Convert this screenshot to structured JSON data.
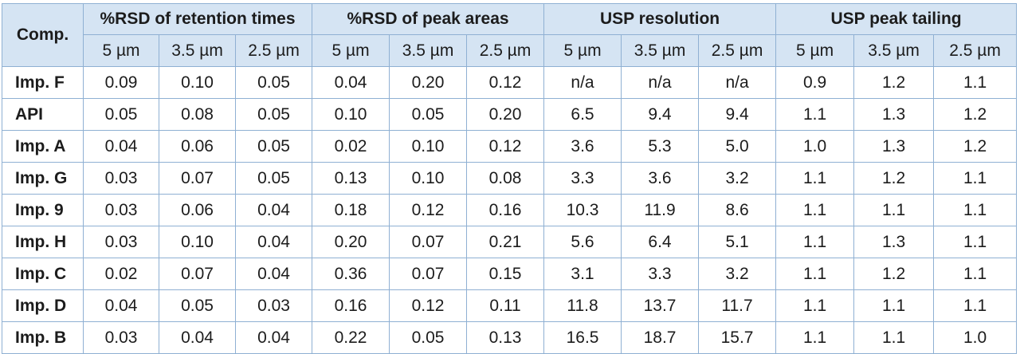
{
  "table": {
    "comp_header": "Comp.",
    "groups": [
      "%RSD of retention times",
      "%RSD of peak areas",
      "USP resolution",
      "USP peak tailing"
    ],
    "sizes": [
      "5 µm",
      "3.5 µm",
      "2.5 µm"
    ],
    "rows": [
      {
        "comp": "Imp. F",
        "values": [
          "0.09",
          "0.10",
          "0.05",
          "0.04",
          "0.20",
          "0.12",
          "n/a",
          "n/a",
          "n/a",
          "0.9",
          "1.2",
          "1.1"
        ]
      },
      {
        "comp": "API",
        "values": [
          "0.05",
          "0.08",
          "0.05",
          "0.10",
          "0.05",
          "0.20",
          "6.5",
          "9.4",
          "9.4",
          "1.1",
          "1.3",
          "1.2"
        ]
      },
      {
        "comp": "Imp. A",
        "values": [
          "0.04",
          "0.06",
          "0.05",
          "0.02",
          "0.10",
          "0.12",
          "3.6",
          "5.3",
          "5.0",
          "1.0",
          "1.3",
          "1.2"
        ]
      },
      {
        "comp": "Imp. G",
        "values": [
          "0.03",
          "0.07",
          "0.05",
          "0.13",
          "0.10",
          "0.08",
          "3.3",
          "3.6",
          "3.2",
          "1.1",
          "1.2",
          "1.1"
        ]
      },
      {
        "comp": "Imp. 9",
        "values": [
          "0.03",
          "0.06",
          "0.04",
          "0.18",
          "0.12",
          "0.16",
          "10.3",
          "11.9",
          "8.6",
          "1.1",
          "1.1",
          "1.1"
        ]
      },
      {
        "comp": "Imp. H",
        "values": [
          "0.03",
          "0.10",
          "0.04",
          "0.20",
          "0.07",
          "0.21",
          "5.6",
          "6.4",
          "5.1",
          "1.1",
          "1.3",
          "1.1"
        ]
      },
      {
        "comp": "Imp. C",
        "values": [
          "0.02",
          "0.07",
          "0.04",
          "0.36",
          "0.07",
          "0.15",
          "3.1",
          "3.3",
          "3.2",
          "1.1",
          "1.2",
          "1.1"
        ]
      },
      {
        "comp": "Imp. D",
        "values": [
          "0.04",
          "0.05",
          "0.03",
          "0.16",
          "0.12",
          "0.11",
          "11.8",
          "13.7",
          "11.7",
          "1.1",
          "1.1",
          "1.1"
        ]
      },
      {
        "comp": "Imp. B",
        "values": [
          "0.03",
          "0.04",
          "0.04",
          "0.22",
          "0.05",
          "0.13",
          "16.5",
          "18.7",
          "15.7",
          "1.1",
          "1.1",
          "1.0"
        ]
      }
    ]
  }
}
